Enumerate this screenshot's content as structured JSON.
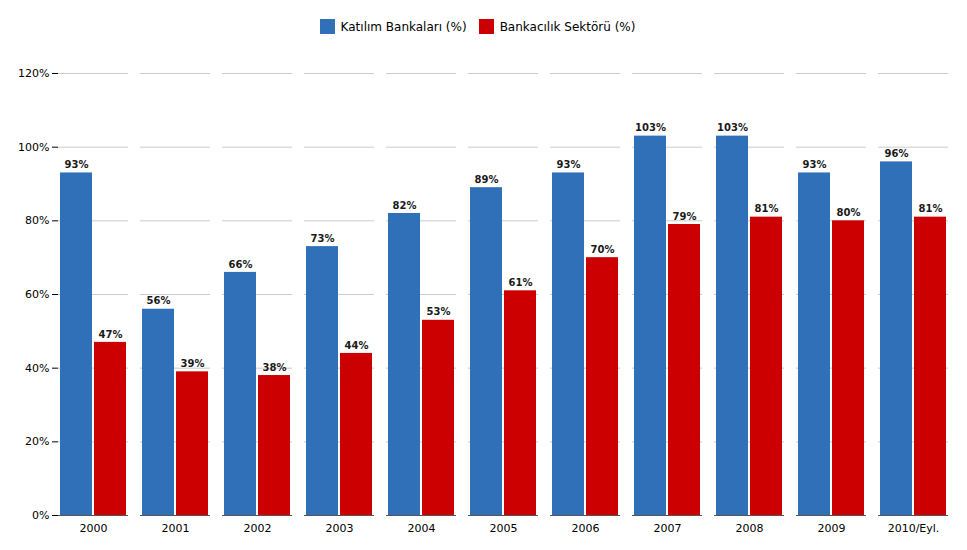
{
  "chart_data": {
    "type": "bar",
    "categories": [
      "2000",
      "2001",
      "2002",
      "2003",
      "2004",
      "2005",
      "2006",
      "2007",
      "2008",
      "2009",
      "2010/Eyl."
    ],
    "series": [
      {
        "name": "Katılım Bankaları (%)",
        "color": "#3070B8",
        "values": [
          93,
          56,
          66,
          73,
          82,
          89,
          93,
          103,
          103,
          93,
          96
        ],
        "value_labels": [
          "93%",
          "56%",
          "66%",
          "73%",
          "82%",
          "89%",
          "93%",
          "103%",
          "103%",
          "93%",
          "96%"
        ]
      },
      {
        "name": "Bankacılık Sektörü (%)",
        "color": "#CC0000",
        "values": [
          47,
          39,
          38,
          44,
          53,
          61,
          70,
          79,
          81,
          80,
          81
        ],
        "value_labels": [
          "47%",
          "39%",
          "38%",
          "44%",
          "53%",
          "61%",
          "70%",
          "79%",
          "81%",
          "80%",
          "81%"
        ]
      }
    ],
    "ylim": [
      0,
      120
    ],
    "yticks": [
      {
        "value": 0,
        "label": "0%"
      },
      {
        "value": 20,
        "label": "20%"
      },
      {
        "value": 40,
        "label": "40%"
      },
      {
        "value": 60,
        "label": "60%"
      },
      {
        "value": 80,
        "label": "80%"
      },
      {
        "value": 100,
        "label": "100%"
      },
      {
        "value": 120,
        "label": "120%"
      }
    ],
    "grid": true,
    "legend": "top",
    "data_labels": true
  }
}
